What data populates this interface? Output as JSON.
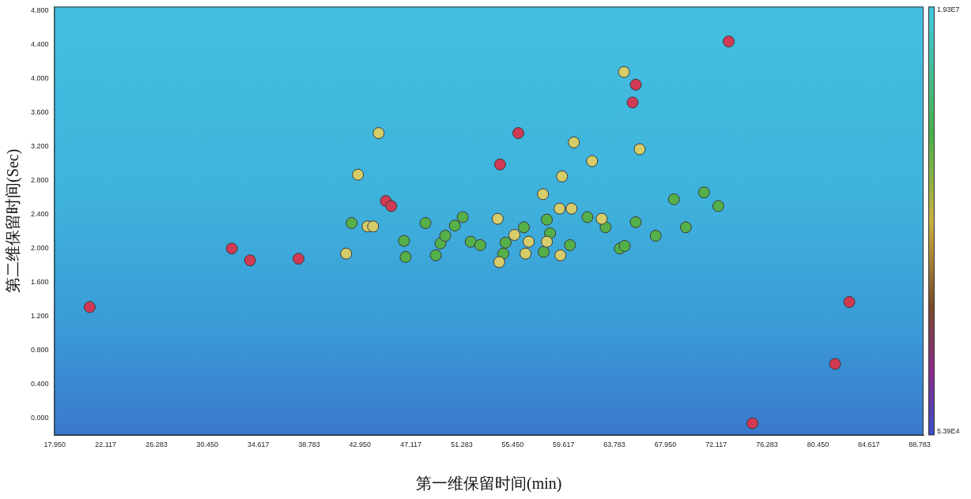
{
  "chart_data": {
    "type": "scatter",
    "x_label": "第一维保留时间(min)",
    "y_label": "第二维保留时间(Sec)",
    "xlim": [
      17.9,
      89.1
    ],
    "ylim": [
      -0.2,
      4.85
    ],
    "xticks": [
      {
        "value": 17.95,
        "label": "17.950"
      },
      {
        "value": 22.117,
        "label": "22.117"
      },
      {
        "value": 26.283,
        "label": "26.283"
      },
      {
        "value": 30.45,
        "label": "30.450"
      },
      {
        "value": 34.617,
        "label": "34.617"
      },
      {
        "value": 38.783,
        "label": "38.783"
      },
      {
        "value": 42.95,
        "label": "42.950"
      },
      {
        "value": 47.117,
        "label": "47.117"
      },
      {
        "value": 51.283,
        "label": "51.283"
      },
      {
        "value": 55.45,
        "label": "55.450"
      },
      {
        "value": 59.617,
        "label": "59.617"
      },
      {
        "value": 63.783,
        "label": "63.783"
      },
      {
        "value": 67.95,
        "label": "67.950"
      },
      {
        "value": 72.117,
        "label": "72.117"
      },
      {
        "value": 76.283,
        "label": "76.283"
      },
      {
        "value": 80.45,
        "label": "80.450"
      },
      {
        "value": 84.617,
        "label": "84.617"
      },
      {
        "value": 88.783,
        "label": "88.783"
      }
    ],
    "yticks": [
      {
        "value": 0,
        "label": "0.000"
      },
      {
        "value": 0.4,
        "label": "0.400"
      },
      {
        "value": 0.8,
        "label": "0.800"
      },
      {
        "value": 1.2,
        "label": "1.200"
      },
      {
        "value": 1.6,
        "label": "1.600"
      },
      {
        "value": 2,
        "label": "2.000"
      },
      {
        "value": 2.4,
        "label": "2.400"
      },
      {
        "value": 2.8,
        "label": "2.800"
      },
      {
        "value": 3.2,
        "label": "3.200"
      },
      {
        "value": 3.6,
        "label": "3.600"
      },
      {
        "value": 4,
        "label": "4.000"
      },
      {
        "value": 4.4,
        "label": "4.400"
      },
      {
        "value": 4.8,
        "label": "4.800"
      }
    ],
    "grid": false,
    "marker": "circle",
    "series": [
      {
        "color": "#d03a55",
        "x": [
          20.81,
          32.45,
          33.94,
          37.91,
          45.06,
          45.51,
          54.42,
          55.91,
          65.53,
          65.27,
          73.14,
          83.02,
          81.85,
          75.09
        ],
        "values": [
          1.31,
          2.0,
          1.86,
          1.88,
          2.56,
          2.5,
          2.99,
          3.36,
          3.93,
          3.72,
          4.44,
          1.37,
          0.64,
          -0.06
        ]
      },
      {
        "color": "#d6cc6a",
        "x": [
          44.47,
          64.56,
          65.85,
          60.46,
          61.95,
          59.49,
          42.78,
          43.56,
          44.02,
          41.81,
          57.93,
          59.29,
          60.27,
          62.74,
          54.22,
          55.59,
          56.76,
          58.25,
          56.5,
          54.35,
          59.36
        ],
        "values": [
          3.36,
          4.08,
          3.17,
          3.25,
          3.03,
          2.85,
          2.87,
          2.26,
          2.26,
          1.94,
          2.64,
          2.47,
          2.47,
          2.35,
          2.35,
          2.16,
          2.08,
          2.08,
          1.94,
          1.84,
          1.92
        ]
      },
      {
        "color": "#55b04a",
        "x": [
          42.26,
          48.31,
          51.36,
          50.71,
          46.55,
          46.68,
          49.15,
          49.54,
          49.93,
          52.01,
          52.79,
          54.87,
          54.68,
          56.37,
          58.25,
          58.51,
          57.99,
          60.14,
          61.57,
          63.06,
          65.53,
          64.23,
          64.62,
          67.16,
          68.65,
          69.63,
          71.12,
          72.29
        ],
        "values": [
          2.3,
          2.3,
          2.37,
          2.27,
          2.09,
          1.9,
          1.92,
          2.06,
          2.15,
          2.08,
          2.04,
          2.07,
          1.94,
          2.25,
          2.34,
          2.18,
          1.96,
          2.04,
          2.37,
          2.25,
          2.31,
          2.0,
          2.03,
          2.15,
          2.58,
          2.25,
          2.66,
          2.5
        ]
      }
    ],
    "colorbar": {
      "range": [
        53900,
        19300000
      ],
      "ticks": [
        {
          "value": 53900,
          "label": "5.39E4"
        },
        {
          "value": 19300000,
          "label": "1.93E7"
        }
      ]
    }
  }
}
